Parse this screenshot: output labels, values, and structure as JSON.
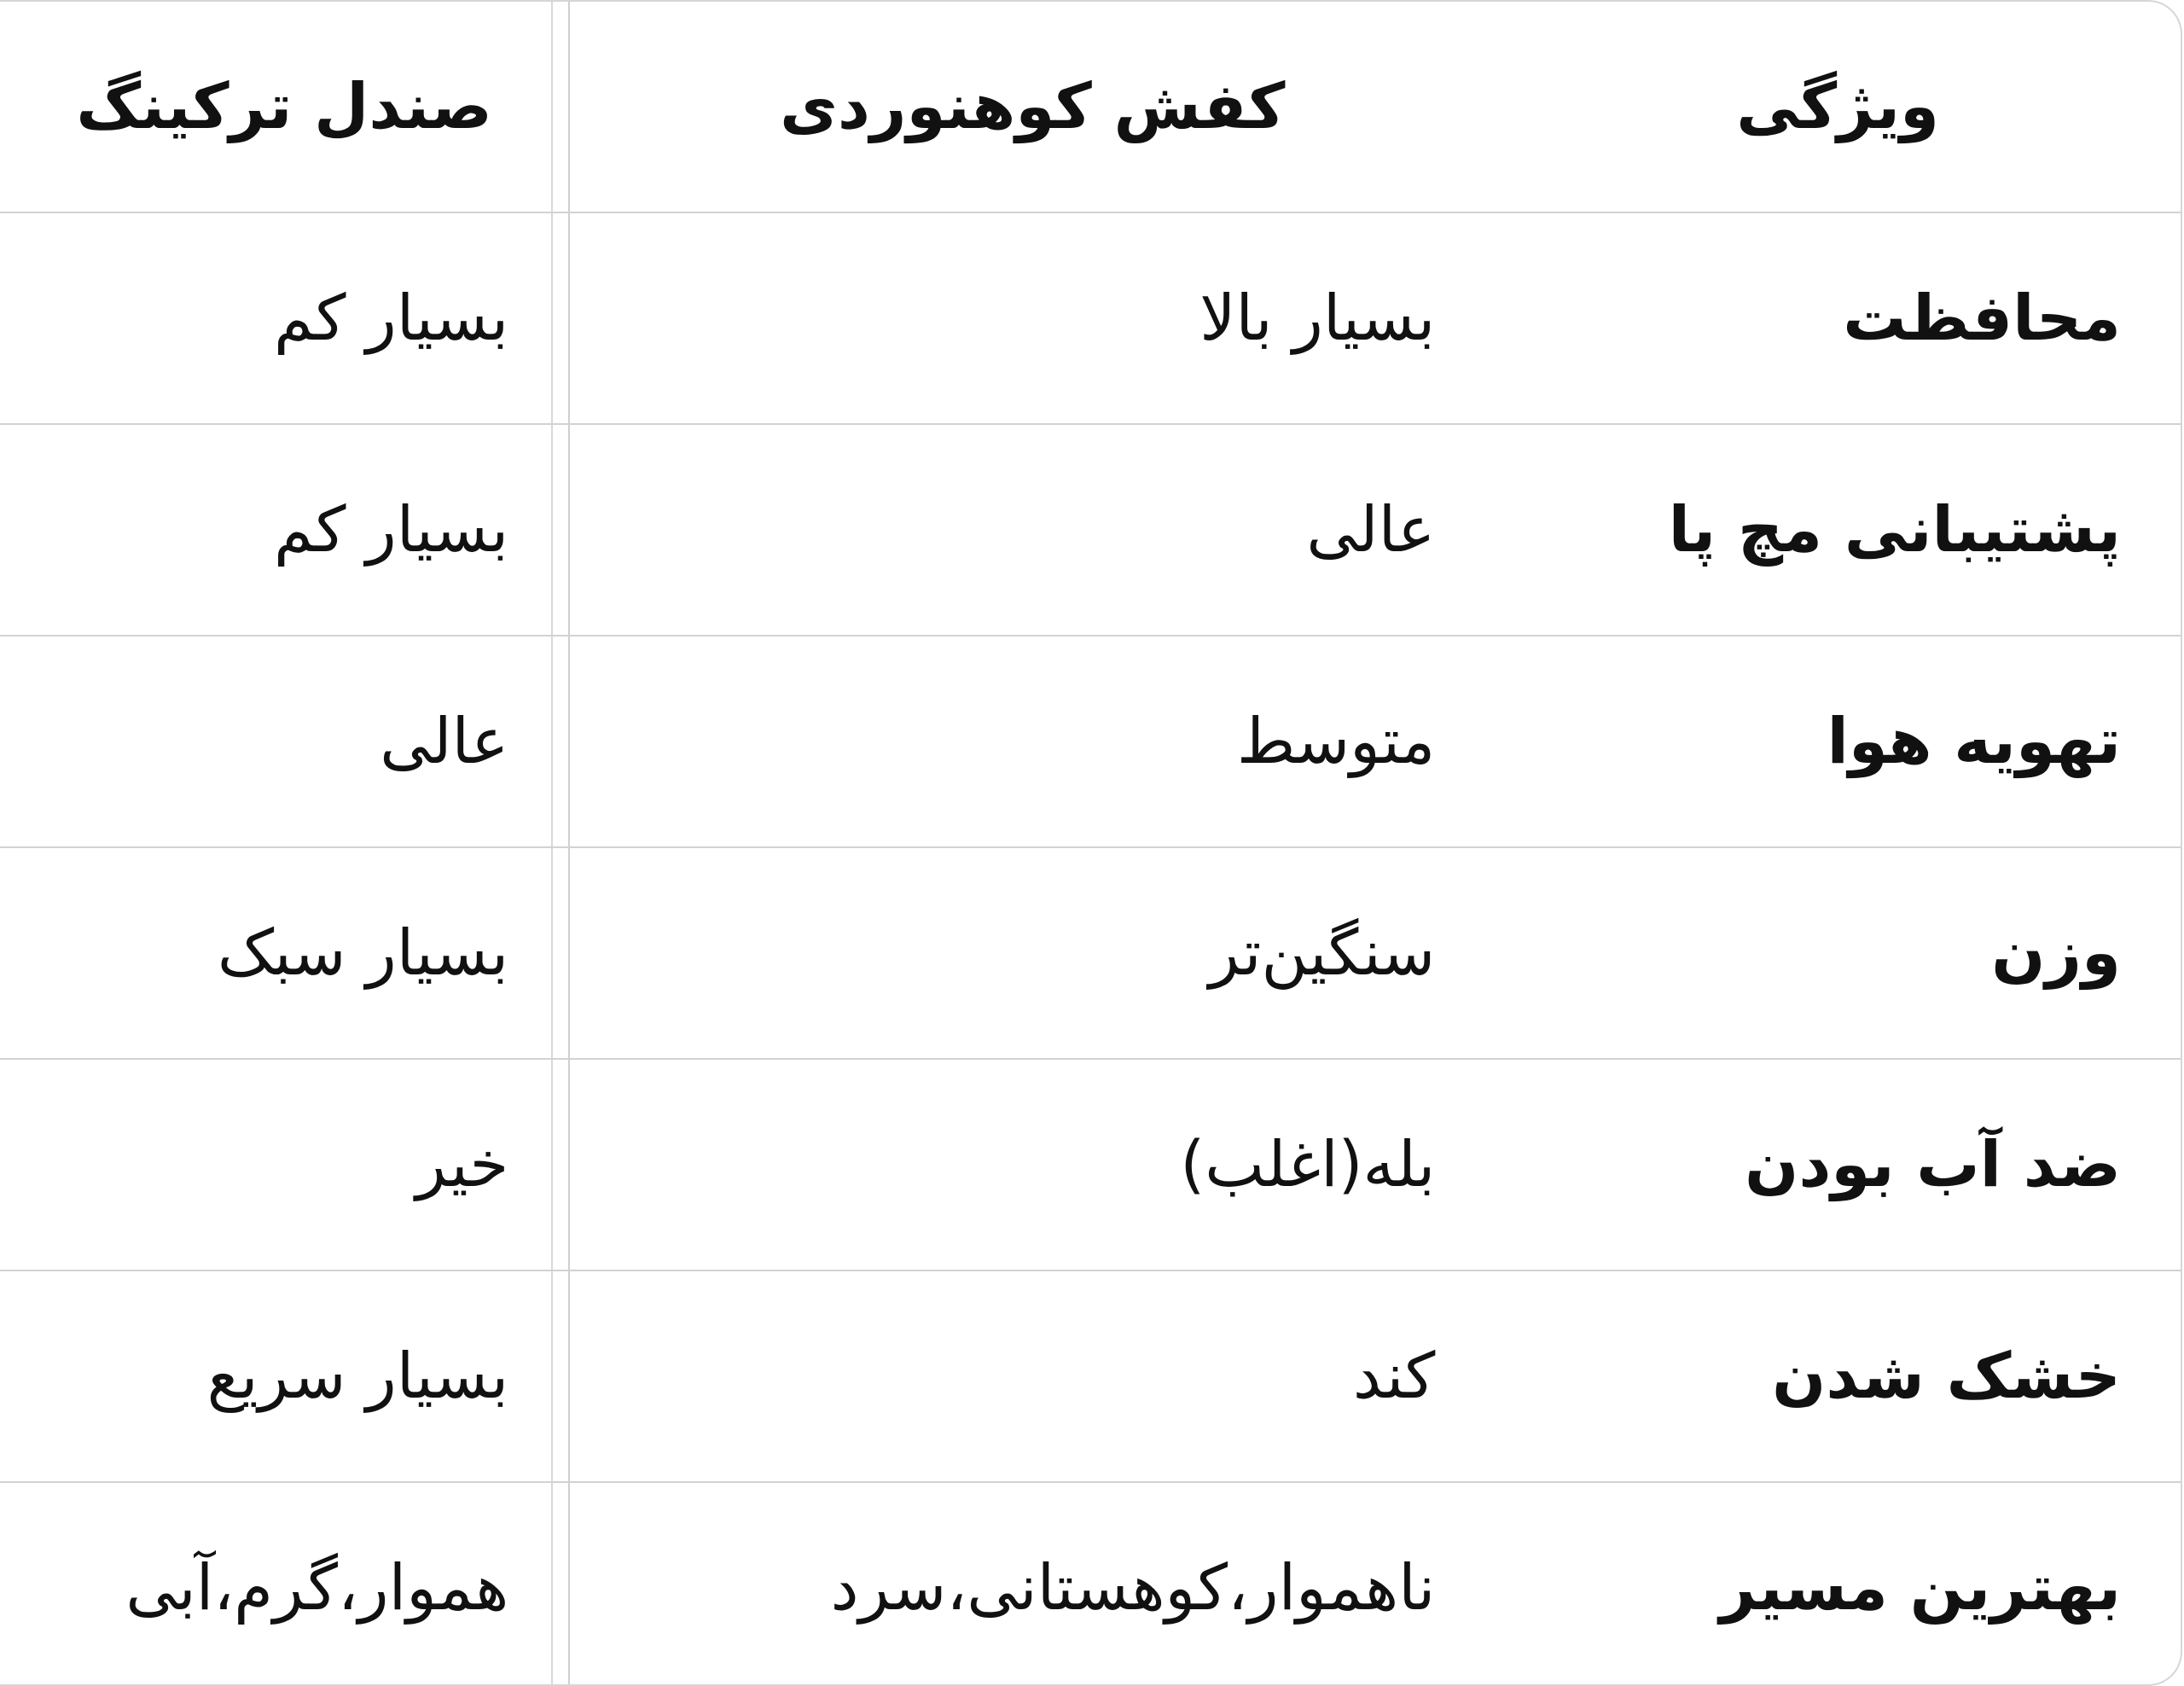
{
  "table": {
    "headers": [
      "ویژگی",
      "کفش کوهنوردی",
      "صندل ترکینگ"
    ],
    "rows": [
      [
        "محافظت",
        "بسیار بالا",
        "بسیار کم"
      ],
      [
        "پشتیبانی مچ پا",
        "عالی",
        "بسیار کم"
      ],
      [
        "تهویه هوا",
        "متوسط",
        "عالی"
      ],
      [
        "وزن",
        "سنگین‌تر",
        "بسیار سبک"
      ],
      [
        "ضد آب بودن",
        "بله(اغلب)",
        "خیر"
      ],
      [
        "خشک شدن",
        "کند",
        "بسیار سریع"
      ],
      [
        "بهترین مسیر",
        "ناهموار،کوهستانی،سرد",
        "هموار،گرم،آبی"
      ]
    ]
  }
}
